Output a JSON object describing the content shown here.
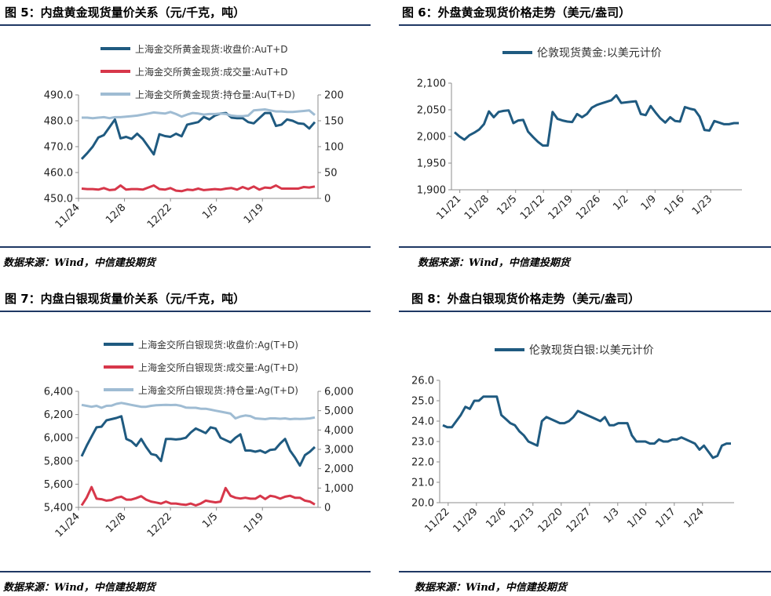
{
  "panels": [
    {
      "title": "图 5：内盘黄金现货量价关系（元/千克，吨）",
      "source": "数据来源：Wind，中信建投期货",
      "chart_data": {
        "type": "line",
        "dual_axis": true,
        "legend_position": "top",
        "x_ticks": [
          "11/24",
          "12/8",
          "12/22",
          "1/5",
          "1/19"
        ],
        "y_left": {
          "min": 450,
          "max": 490,
          "ticks": [
            "450.0",
            "460.0",
            "470.0",
            "480.0",
            "490.0"
          ]
        },
        "y_right": {
          "min": 0,
          "max": 200,
          "ticks": [
            "0",
            "50",
            "100",
            "150",
            "200"
          ]
        },
        "grid": false,
        "series": [
          {
            "name": "上海金交所黄金现货:收盘价:AuT+D",
            "axis": "left",
            "color": "#1f5a80",
            "values": [
              465.2,
              467.5,
              470,
              473.5,
              474.5,
              477.5,
              480.5,
              473.2,
              473.8,
              473,
              475,
              473,
              470,
              467,
              474.8,
              474.1,
              473.8,
              475,
              474,
              478.5,
              479,
              479.5,
              481.5,
              480.5,
              482,
              482.8,
              483,
              481.2,
              481,
              481,
              479.5,
              479,
              481,
              483,
              483,
              478,
              478.5,
              480.5,
              480,
              479,
              478.8,
              477,
              479.5
            ]
          },
          {
            "name": "上海金交所黄金现货:成交量:AuT+D",
            "axis": "right",
            "color": "#d7374a",
            "values": [
              19,
              18,
              18,
              17,
              20,
              16,
              17,
              25,
              17,
              18,
              18,
              17,
              21,
              25,
              18,
              17,
              20,
              15,
              14,
              17,
              16,
              19,
              16,
              17,
              18,
              17,
              19,
              20,
              17,
              22,
              18,
              23,
              17,
              21,
              20,
              25,
              19,
              19,
              19,
              19,
              22,
              21,
              23
            ]
          },
          {
            "name": "上海金交所黄金现货:持仓量:Au(T+D)",
            "axis": "right",
            "color": "#9fbcd3",
            "values": [
              156,
              156,
              155,
              156,
              157,
              155,
              157,
              157,
              158,
              159,
              160,
              162,
              164,
              166,
              165,
              164,
              167,
              163,
              158,
              162,
              165,
              164,
              162,
              163,
              163,
              164,
              163,
              160,
              159,
              159,
              160,
              170,
              171,
              172,
              170,
              168,
              168,
              167,
              167,
              168,
              169,
              170,
              161
            ]
          }
        ]
      }
    },
    {
      "title": "图 6：外盘黄金现货价格走势（美元/盎司）",
      "source": "数据来源：Wind，中信建投期货",
      "chart_data": {
        "type": "line",
        "legend_position": "top",
        "x_ticks": [
          "11/21",
          "11/28",
          "12/5",
          "12/12",
          "12/19",
          "12/26",
          "1/2",
          "1/9",
          "1/16",
          "1/23"
        ],
        "y_left": {
          "min": 1900,
          "max": 2100,
          "ticks": [
            "1,900",
            "1,950",
            "2,000",
            "2,050",
            "2,100"
          ]
        },
        "grid": false,
        "series": [
          {
            "name": "伦敦现货黄金:以美元计价",
            "color": "#1f5a80",
            "values": [
              2008,
              2000,
              1994,
              2002,
              2007,
              2013,
              2023,
              2047,
              2036,
              2046,
              2048,
              2049,
              2025,
              2030,
              2031,
              2009,
              1999,
              1990,
              1983,
              1983,
              2046,
              2033,
              2030,
              2028,
              2027,
              2042,
              2036,
              2042,
              2054,
              2059,
              2062,
              2065,
              2068,
              2077,
              2063,
              2064,
              2065,
              2066,
              2042,
              2040,
              2057,
              2045,
              2034,
              2026,
              2036,
              2029,
              2028,
              2055,
              2052,
              2050,
              2037,
              2012,
              2011,
              2029,
              2026,
              2023,
              2023,
              2025,
              2025
            ]
          }
        ]
      }
    },
    {
      "title": "图 7：内盘白银现货量价关系（元/千克，吨）",
      "source": "数据来源：Wind，中信建投期货",
      "chart_data": {
        "type": "line",
        "dual_axis": true,
        "legend_position": "top",
        "x_ticks": [
          "11/24",
          "12/8",
          "12/22",
          "1/5",
          "1/19"
        ],
        "y_left": {
          "min": 5400,
          "max": 6400,
          "ticks": [
            "5,400",
            "5,600",
            "5,800",
            "6,000",
            "6,200",
            "6,400"
          ]
        },
        "y_right": {
          "min": 0,
          "max": 6000,
          "ticks": [
            "0",
            "1,000",
            "2,000",
            "3,000",
            "4,000",
            "5,000",
            "6,000"
          ]
        },
        "grid": false,
        "series": [
          {
            "name": "上海金交所白银现货:收盘价:Ag(T+D)",
            "axis": "left",
            "color": "#1f5a80",
            "values": [
              5840,
              5930,
              6010,
              6090,
              6095,
              6150,
              6160,
              6170,
              6185,
              5990,
              5970,
              5930,
              5990,
              5920,
              5860,
              5850,
              5800,
              5990,
              5990,
              5985,
              5990,
              6000,
              6045,
              6080,
              6060,
              6040,
              6090,
              6080,
              6000,
              5980,
              5960,
              6000,
              6030,
              5890,
              5890,
              5880,
              5890,
              5870,
              5895,
              5900,
              5950,
              5990,
              5890,
              5830,
              5760,
              5850,
              5880,
              5920
            ]
          },
          {
            "name": "上海金交所白银现货:成交量:Ag(T+D)",
            "axis": "right",
            "color": "#d7374a",
            "values": [
              100,
              500,
              1050,
              450,
              420,
              350,
              380,
              500,
              550,
              400,
              400,
              480,
              580,
              400,
              300,
              250,
              200,
              300,
              200,
              200,
              160,
              130,
              200,
              100,
              200,
              350,
              300,
              260,
              300,
              1000,
              600,
              500,
              460,
              500,
              450,
              450,
              600,
              430,
              600,
              550,
              450,
              550,
              600,
              500,
              500,
              350,
              300,
              150
            ]
          },
          {
            "name": "上海金交所白银现货:持仓量:Ag(T+D)",
            "axis": "right",
            "color": "#9fbcd3",
            "values": [
              5300,
              5250,
              5200,
              5250,
              5150,
              5250,
              5260,
              5350,
              5400,
              5350,
              5300,
              5250,
              5200,
              5200,
              5250,
              5280,
              5290,
              5300,
              5290,
              5300,
              5250,
              5160,
              5150,
              5150,
              5100,
              5100,
              5050,
              5000,
              4950,
              4900,
              4850,
              4600,
              4700,
              4750,
              4720,
              4600,
              4580,
              4560,
              4600,
              4600,
              4580,
              4600,
              4560,
              4580,
              4570,
              4580,
              4600,
              4650
            ]
          }
        ]
      }
    },
    {
      "title": "图 8：外盘白银现货价格走势（美元/盎司）",
      "source": "数据来源：Wind，中信建投期货",
      "chart_data": {
        "type": "line",
        "legend_position": "top",
        "x_ticks": [
          "11/22",
          "11/29",
          "12/6",
          "12/13",
          "12/20",
          "12/27",
          "1/3",
          "1/10",
          "1/17",
          "1/24"
        ],
        "y_left": {
          "min": 20,
          "max": 26,
          "ticks": [
            "20.0",
            "21.0",
            "22.0",
            "23.0",
            "24.0",
            "25.0",
            "26.0"
          ]
        },
        "grid": false,
        "series": [
          {
            "name": "伦敦现货白银:以美元计价",
            "color": "#1f5a80",
            "values": [
              23.8,
              23.7,
              23.7,
              24.0,
              24.3,
              24.7,
              24.6,
              25.0,
              25.0,
              25.2,
              25.2,
              25.2,
              25.2,
              24.3,
              24.1,
              23.9,
              23.8,
              23.5,
              23.3,
              23.0,
              22.9,
              22.8,
              24.0,
              24.2,
              24.1,
              24.0,
              23.9,
              23.9,
              24.0,
              24.2,
              24.5,
              24.4,
              24.3,
              24.2,
              24.1,
              24.0,
              24.2,
              23.8,
              23.8,
              23.9,
              23.9,
              23.9,
              23.3,
              23.0,
              23.0,
              23.0,
              22.9,
              22.9,
              23.1,
              23.0,
              23.0,
              23.1,
              23.1,
              23.2,
              23.1,
              23.0,
              22.9,
              22.6,
              22.8,
              22.5,
              22.2,
              22.3,
              22.8,
              22.9,
              22.9
            ]
          }
        ]
      }
    }
  ]
}
